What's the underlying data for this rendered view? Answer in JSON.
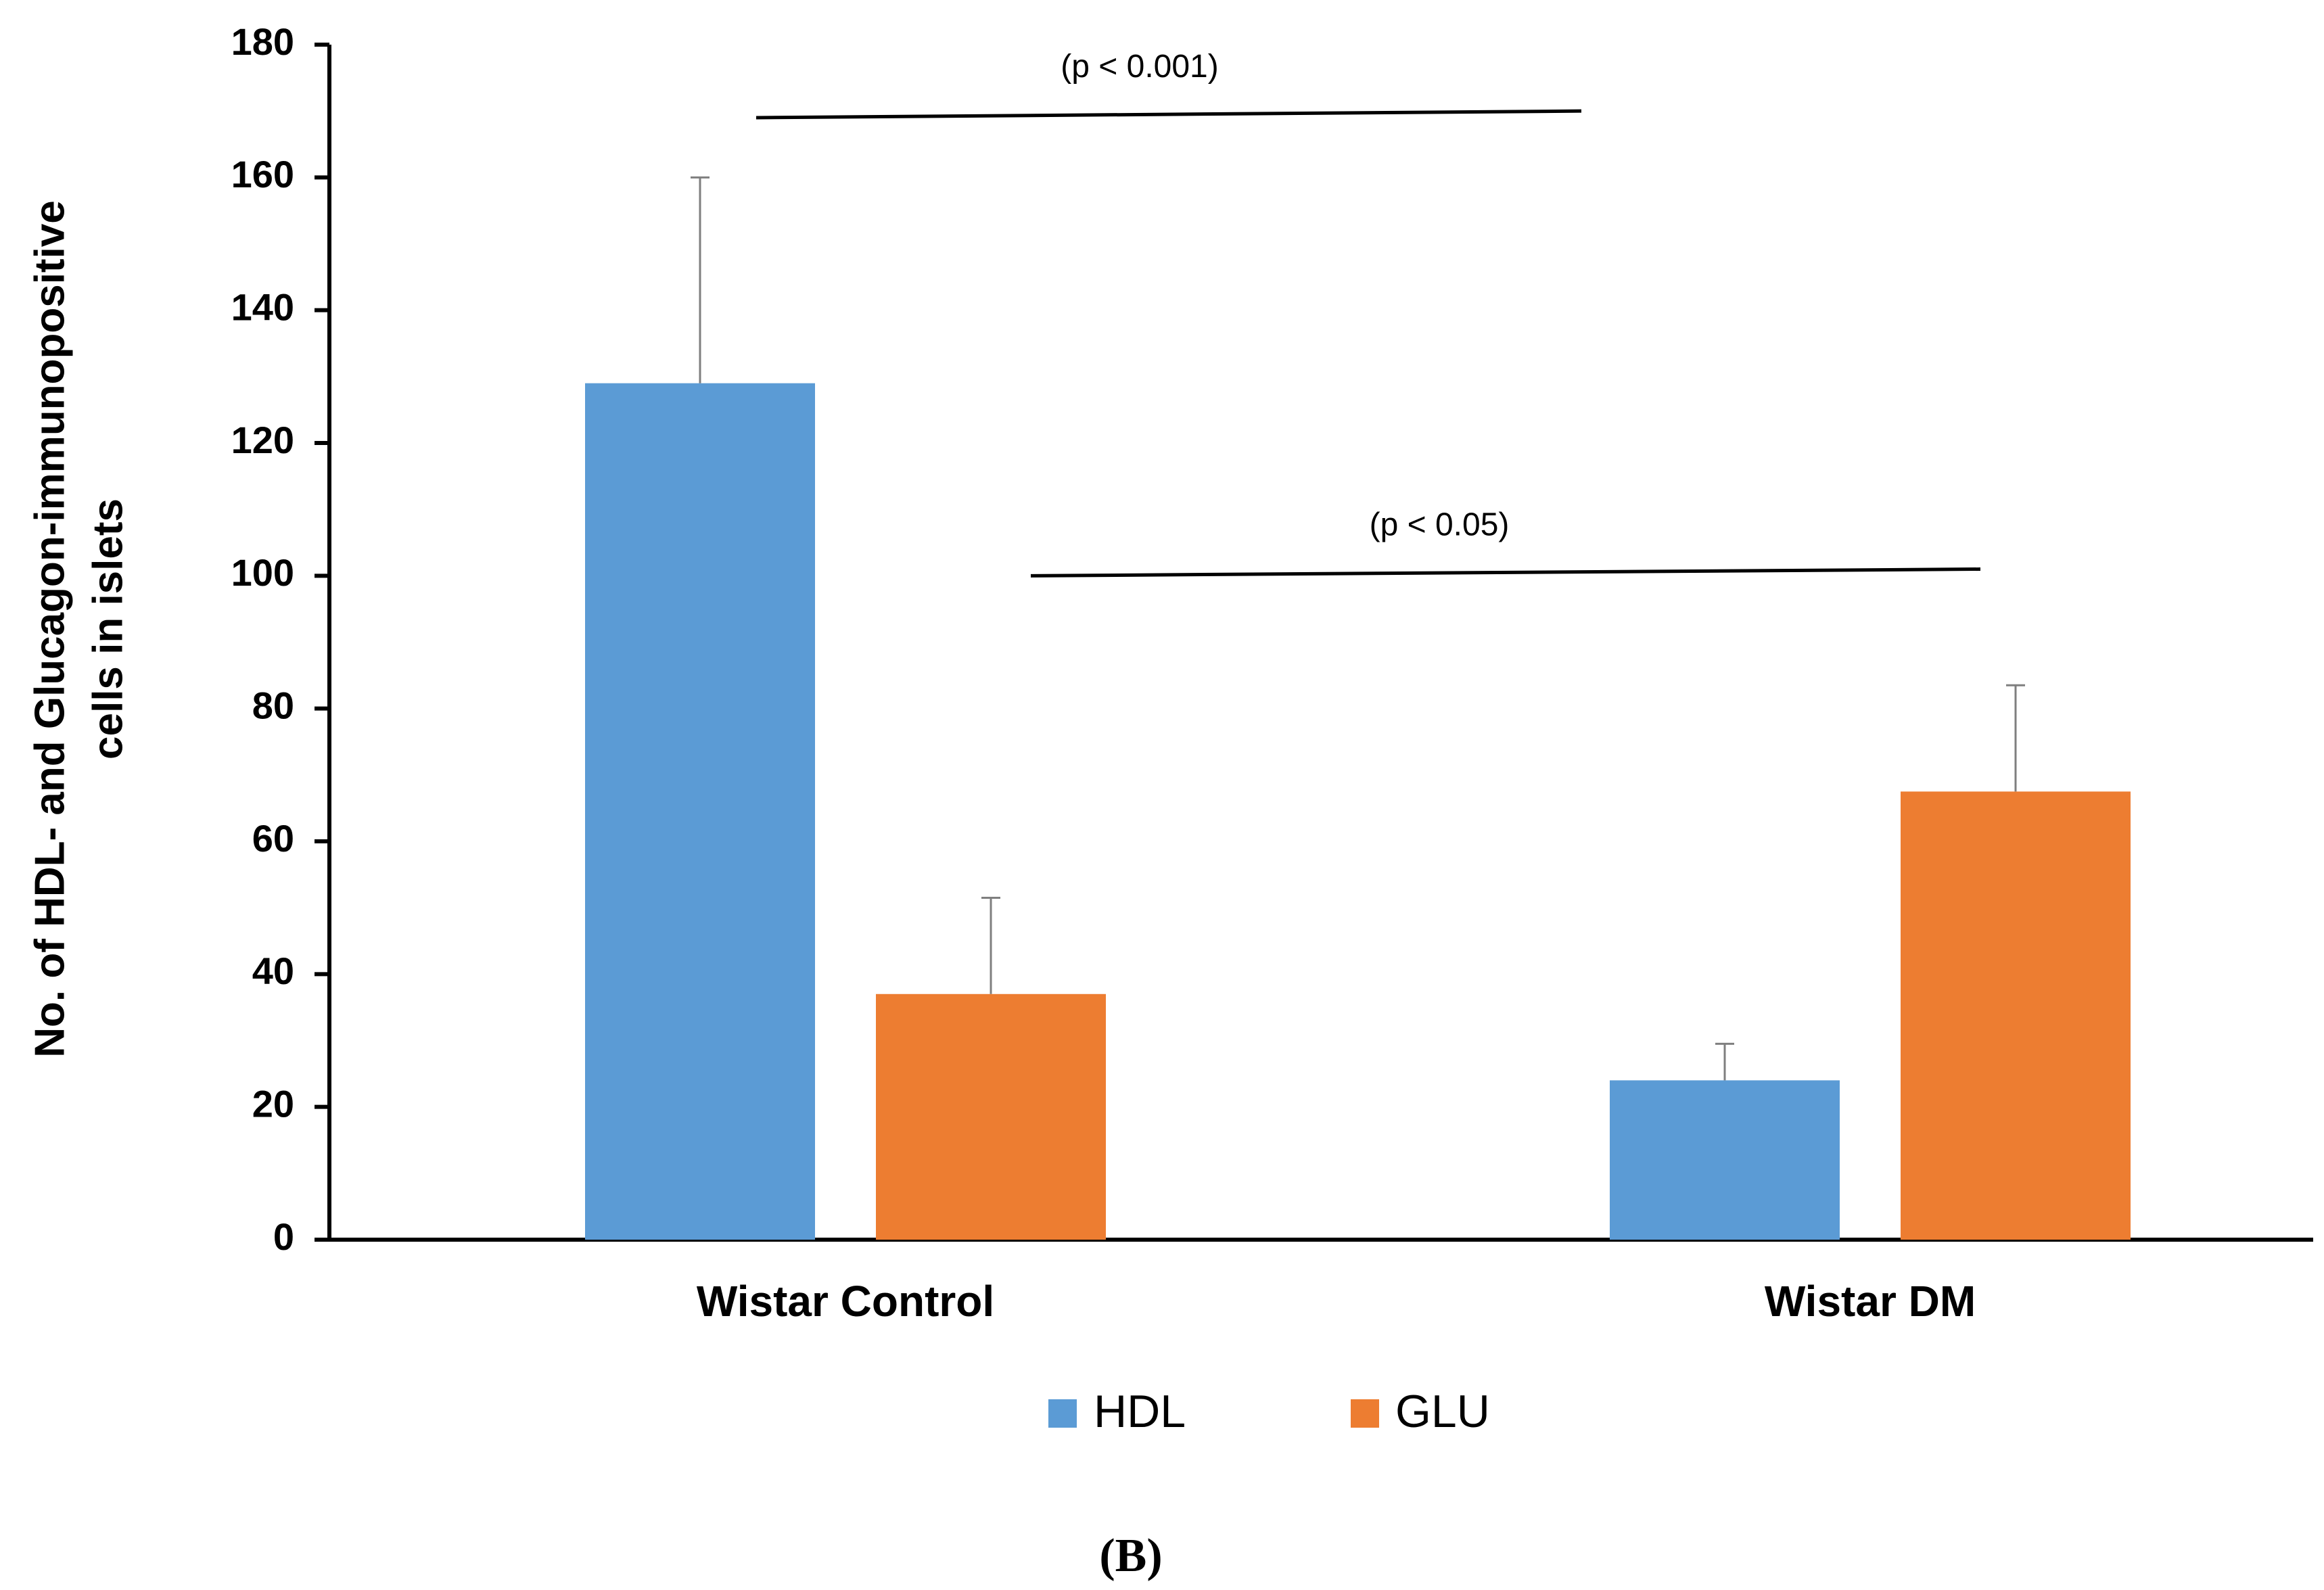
{
  "chart_data": {
    "type": "bar",
    "title": "",
    "xlabel": "",
    "ylabel_lines": [
      "No. of HDL- and Glucagon-immunopositive",
      "cells in islets"
    ],
    "categories": [
      "Wistar Control",
      "Wistar DM"
    ],
    "series": [
      {
        "name": "HDL",
        "color": "#5b9bd5",
        "values": [
          129,
          24
        ],
        "errors": [
          31,
          5.5
        ]
      },
      {
        "name": "GLU",
        "color": "#ed7d31",
        "values": [
          37,
          67.5
        ],
        "errors": [
          14.5,
          16
        ]
      }
    ],
    "ylim": [
      0,
      180
    ],
    "yticks": [
      0,
      20,
      40,
      60,
      80,
      100,
      120,
      140,
      160,
      180
    ],
    "grid": false,
    "legend_position": "bottom",
    "annotations": [
      {
        "text": "(p < 0.001)",
        "from": "Wistar Control HDL",
        "to": "Wistar DM HDL",
        "y_start": 169,
        "y_end": 170
      },
      {
        "text": "(p < 0.05)",
        "from": "Wistar Control GLU",
        "to": "Wistar DM GLU",
        "y_start": 100,
        "y_end": 101
      }
    ],
    "panel_label": "(B)"
  }
}
